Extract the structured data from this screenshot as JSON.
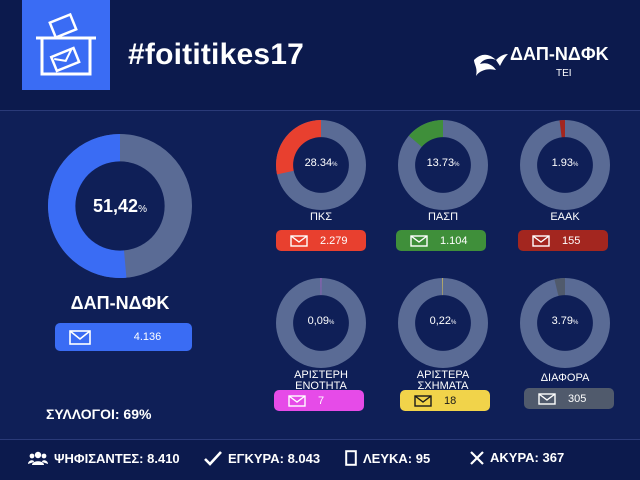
{
  "header": {
    "hashtag": "#foititikes17",
    "brand_name": "ΔΑΠ-ΝΔΦΚ",
    "brand_sub": "ΤΕΙ"
  },
  "main": {
    "name": "ΔΑΠ-ΝΔΦΚ",
    "percent_label": "51,42",
    "percent_sign": "%",
    "percent": 51.42,
    "votes": "4.136",
    "color": "#3a6cf4"
  },
  "parties": [
    {
      "name": "ΠΚΣ",
      "percent_label": "28.34",
      "percent": 28.34,
      "votes": "2.279",
      "color": "#e8402f"
    },
    {
      "name": "ΠΑΣΠ",
      "percent_label": "13.73",
      "percent": 13.73,
      "votes": "1.104",
      "color": "#3f8f3a"
    },
    {
      "name": "ΕΑΑΚ",
      "percent_label": "1.93",
      "percent": 1.93,
      "votes": "155",
      "color": "#a3261f"
    },
    {
      "name_line1": "ΑΡΙΣΤΕΡΗ",
      "name_line2": "ΕΝΟΤΗΤΑ",
      "percent_label": "0,09",
      "percent": 0.09,
      "votes": "7",
      "color": "#e64be8"
    },
    {
      "name_line1": "ΑΡΙΣΤΕΡΑ",
      "name_line2": "ΣΧΗΜΑΤΑ",
      "percent_label": "0,22",
      "percent": 0.22,
      "votes": "18",
      "color": "#f1d34a"
    },
    {
      "name": "ΔΙΑΦΟΡΑ",
      "percent_label": "3.79",
      "percent": 3.79,
      "votes": "305",
      "color": "#505a6c"
    }
  ],
  "percent_sign": "%",
  "syllogoi": "ΣΥΛΛΟΓΟΙ: 69%",
  "footer": {
    "voters": "ΨΗΦΙΣΑΝΤΕΣ: 8.410",
    "valid": "ΕΓΚΥΡΑ: 8.043",
    "blank": "ΛΕΥΚΑ: 95",
    "invalid": "ΑΚΥΡΑ: 367"
  },
  "colors": {
    "background": "#0f1f57",
    "ring_track": "#5a6b95",
    "ring_hole": "#0f1f57"
  },
  "chart_data": {
    "type": "pie",
    "categories": [
      "ΔΑΠ-ΝΔΦΚ",
      "ΠΚΣ",
      "ΠΑΣΠ",
      "ΕΑΑΚ",
      "ΑΡΙΣΤΕΡΗ ΕΝΟΤΗΤΑ",
      "ΑΡΙΣΤΕΡΑ ΣΧΗΜΑΤΑ",
      "ΔΙΑΦΟΡΑ"
    ],
    "values": [
      51.42,
      28.34,
      13.73,
      1.93,
      0.09,
      0.22,
      3.79
    ],
    "votes": [
      4136,
      2279,
      1104,
      155,
      7,
      18,
      305
    ],
    "title": "#foititikes17"
  }
}
